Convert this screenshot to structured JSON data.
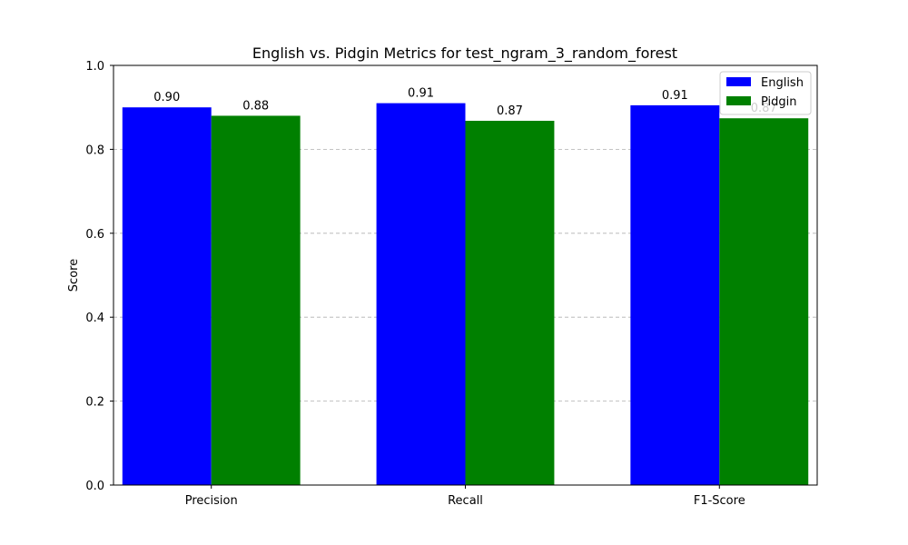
{
  "chart_data": {
    "type": "bar",
    "title": "English vs. Pidgin Metrics for test_ngram_3_random_forest",
    "xlabel": "",
    "ylabel": "Score",
    "categories": [
      "Precision",
      "Recall",
      "F1-Score"
    ],
    "series": [
      {
        "name": "English",
        "values": [
          0.9,
          0.91,
          0.905
        ],
        "labels": [
          "0.90",
          "0.91",
          "0.91"
        ],
        "color": "#0000ff"
      },
      {
        "name": "Pidgin",
        "values": [
          0.88,
          0.868,
          0.874
        ],
        "labels": [
          "0.88",
          "0.87",
          "0.87"
        ],
        "color": "#008000"
      }
    ],
    "ylim": [
      0,
      1.0
    ],
    "yticks": [
      "0.0",
      "0.2",
      "0.4",
      "0.6",
      "0.8",
      "1.0"
    ],
    "grid": "y-dashed",
    "legend_position": "top-right"
  }
}
